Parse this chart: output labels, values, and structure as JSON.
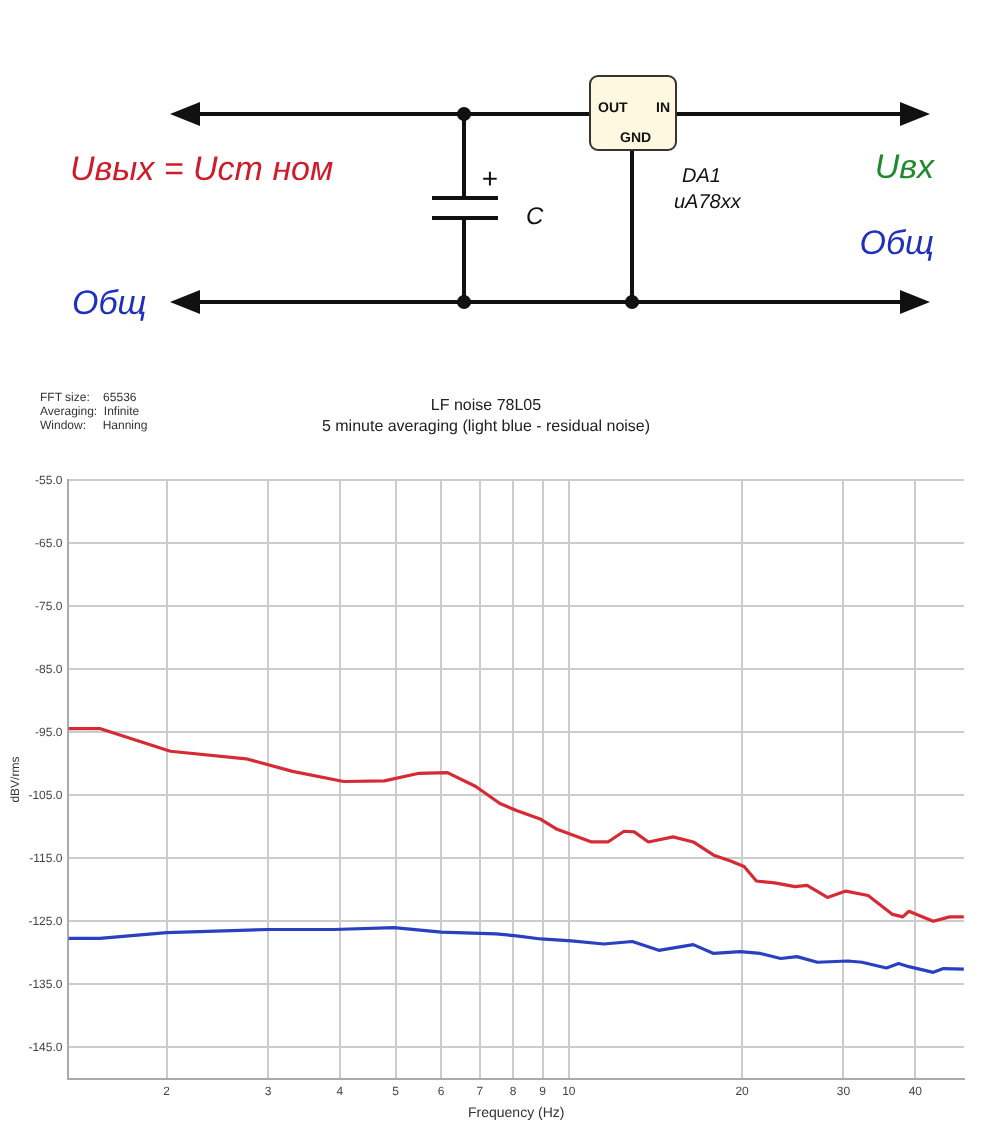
{
  "chart_data": [
    {
      "type": "other",
      "annotations": [
        "Uвых = Uст ном",
        "Общ",
        "+",
        "C",
        "OUT",
        "IN",
        "GND",
        "DA1",
        "uA78xx",
        "Uвх",
        "Общ"
      ]
    },
    {
      "type": "line",
      "title": "LF noise 78L05",
      "subtitle": "5 minute averaging (light blue - residual noise)",
      "xlabel": "Frequency (Hz)",
      "ylabel": "dBV/rms",
      "annotations": [
        "FFT size:    65536",
        "Averaging:  Infinite",
        "Window:     Hanning"
      ],
      "log": "x",
      "grid": true,
      "marker": "none",
      "line_style": "solid",
      "xlim": [
        1.35,
        48.6
      ],
      "xticks": [
        2,
        3,
        4,
        5,
        6,
        7,
        8,
        9,
        10,
        20,
        30,
        40
      ],
      "ylim": [
        -150,
        -55
      ],
      "yticks": [
        {
          "value": -55,
          "label": "-55.0"
        },
        {
          "value": -65,
          "label": "-65.0"
        },
        {
          "value": -75,
          "label": "-75.0"
        },
        {
          "value": -85,
          "label": "-85.0"
        },
        {
          "value": -95,
          "label": "-95.0"
        },
        {
          "value": -105,
          "label": "-105.0"
        },
        {
          "value": -115,
          "label": "-115.0"
        },
        {
          "value": -125,
          "label": "-125.0"
        },
        {
          "value": -135,
          "label": "-135.0"
        },
        {
          "value": -145,
          "label": "-145.0"
        }
      ],
      "series": [
        {
          "color": "#d62a35",
          "x": [
            1.35,
            1.53,
            2.03,
            2.75,
            3.31,
            4.06,
            4.78,
            5.49,
            6.15,
            6.89,
            7.59,
            8.11,
            8.94,
            9.54,
            10.95,
            11.69,
            12.47,
            12.99,
            13.75,
            15.17,
            16.45,
            17.85,
            19.05,
            20.16,
            21.18,
            22.78,
            24.71,
            25.94,
            28.14,
            30.29,
            33.11,
            36.52,
            38.04,
            38.98,
            42.97,
            45.87,
            48.56
          ],
          "values": [
            -94.4,
            -94.4,
            -98.0,
            -99.2,
            -101.2,
            -102.8,
            -102.7,
            -101.5,
            -101.4,
            -103.6,
            -106.3,
            -107.4,
            -108.8,
            -110.4,
            -112.4,
            -112.4,
            -110.7,
            -110.8,
            -112.4,
            -111.6,
            -112.4,
            -114.5,
            -115.4,
            -116.3,
            -118.6,
            -118.9,
            -119.5,
            -119.3,
            -121.2,
            -120.2,
            -120.9,
            -123.9,
            -124.3,
            -123.4,
            -125.0,
            -124.3,
            -124.3
          ]
        },
        {
          "color": "#2a40c0",
          "x": [
            1.35,
            1.53,
            2.0,
            3.0,
            3.9,
            4.97,
            6.0,
            7.47,
            8.11,
            8.94,
            10.1,
            11.5,
            12.89,
            14.33,
            16.45,
            17.85,
            19.84,
            21.52,
            23.34,
            24.91,
            27.03,
            30.53,
            32.32,
            35.63,
            37.41,
            38.98,
            42.97,
            44.77,
            48.56
          ],
          "values": [
            -127.7,
            -127.7,
            -126.8,
            -126.3,
            -126.3,
            -126.0,
            -126.7,
            -127.0,
            -127.3,
            -127.8,
            -128.1,
            -128.6,
            -128.2,
            -129.6,
            -128.7,
            -130.1,
            -129.8,
            -130.1,
            -130.9,
            -130.6,
            -131.5,
            -131.3,
            -131.5,
            -132.4,
            -131.7,
            -132.2,
            -133.1,
            -132.5,
            -132.6
          ]
        }
      ]
    }
  ]
}
